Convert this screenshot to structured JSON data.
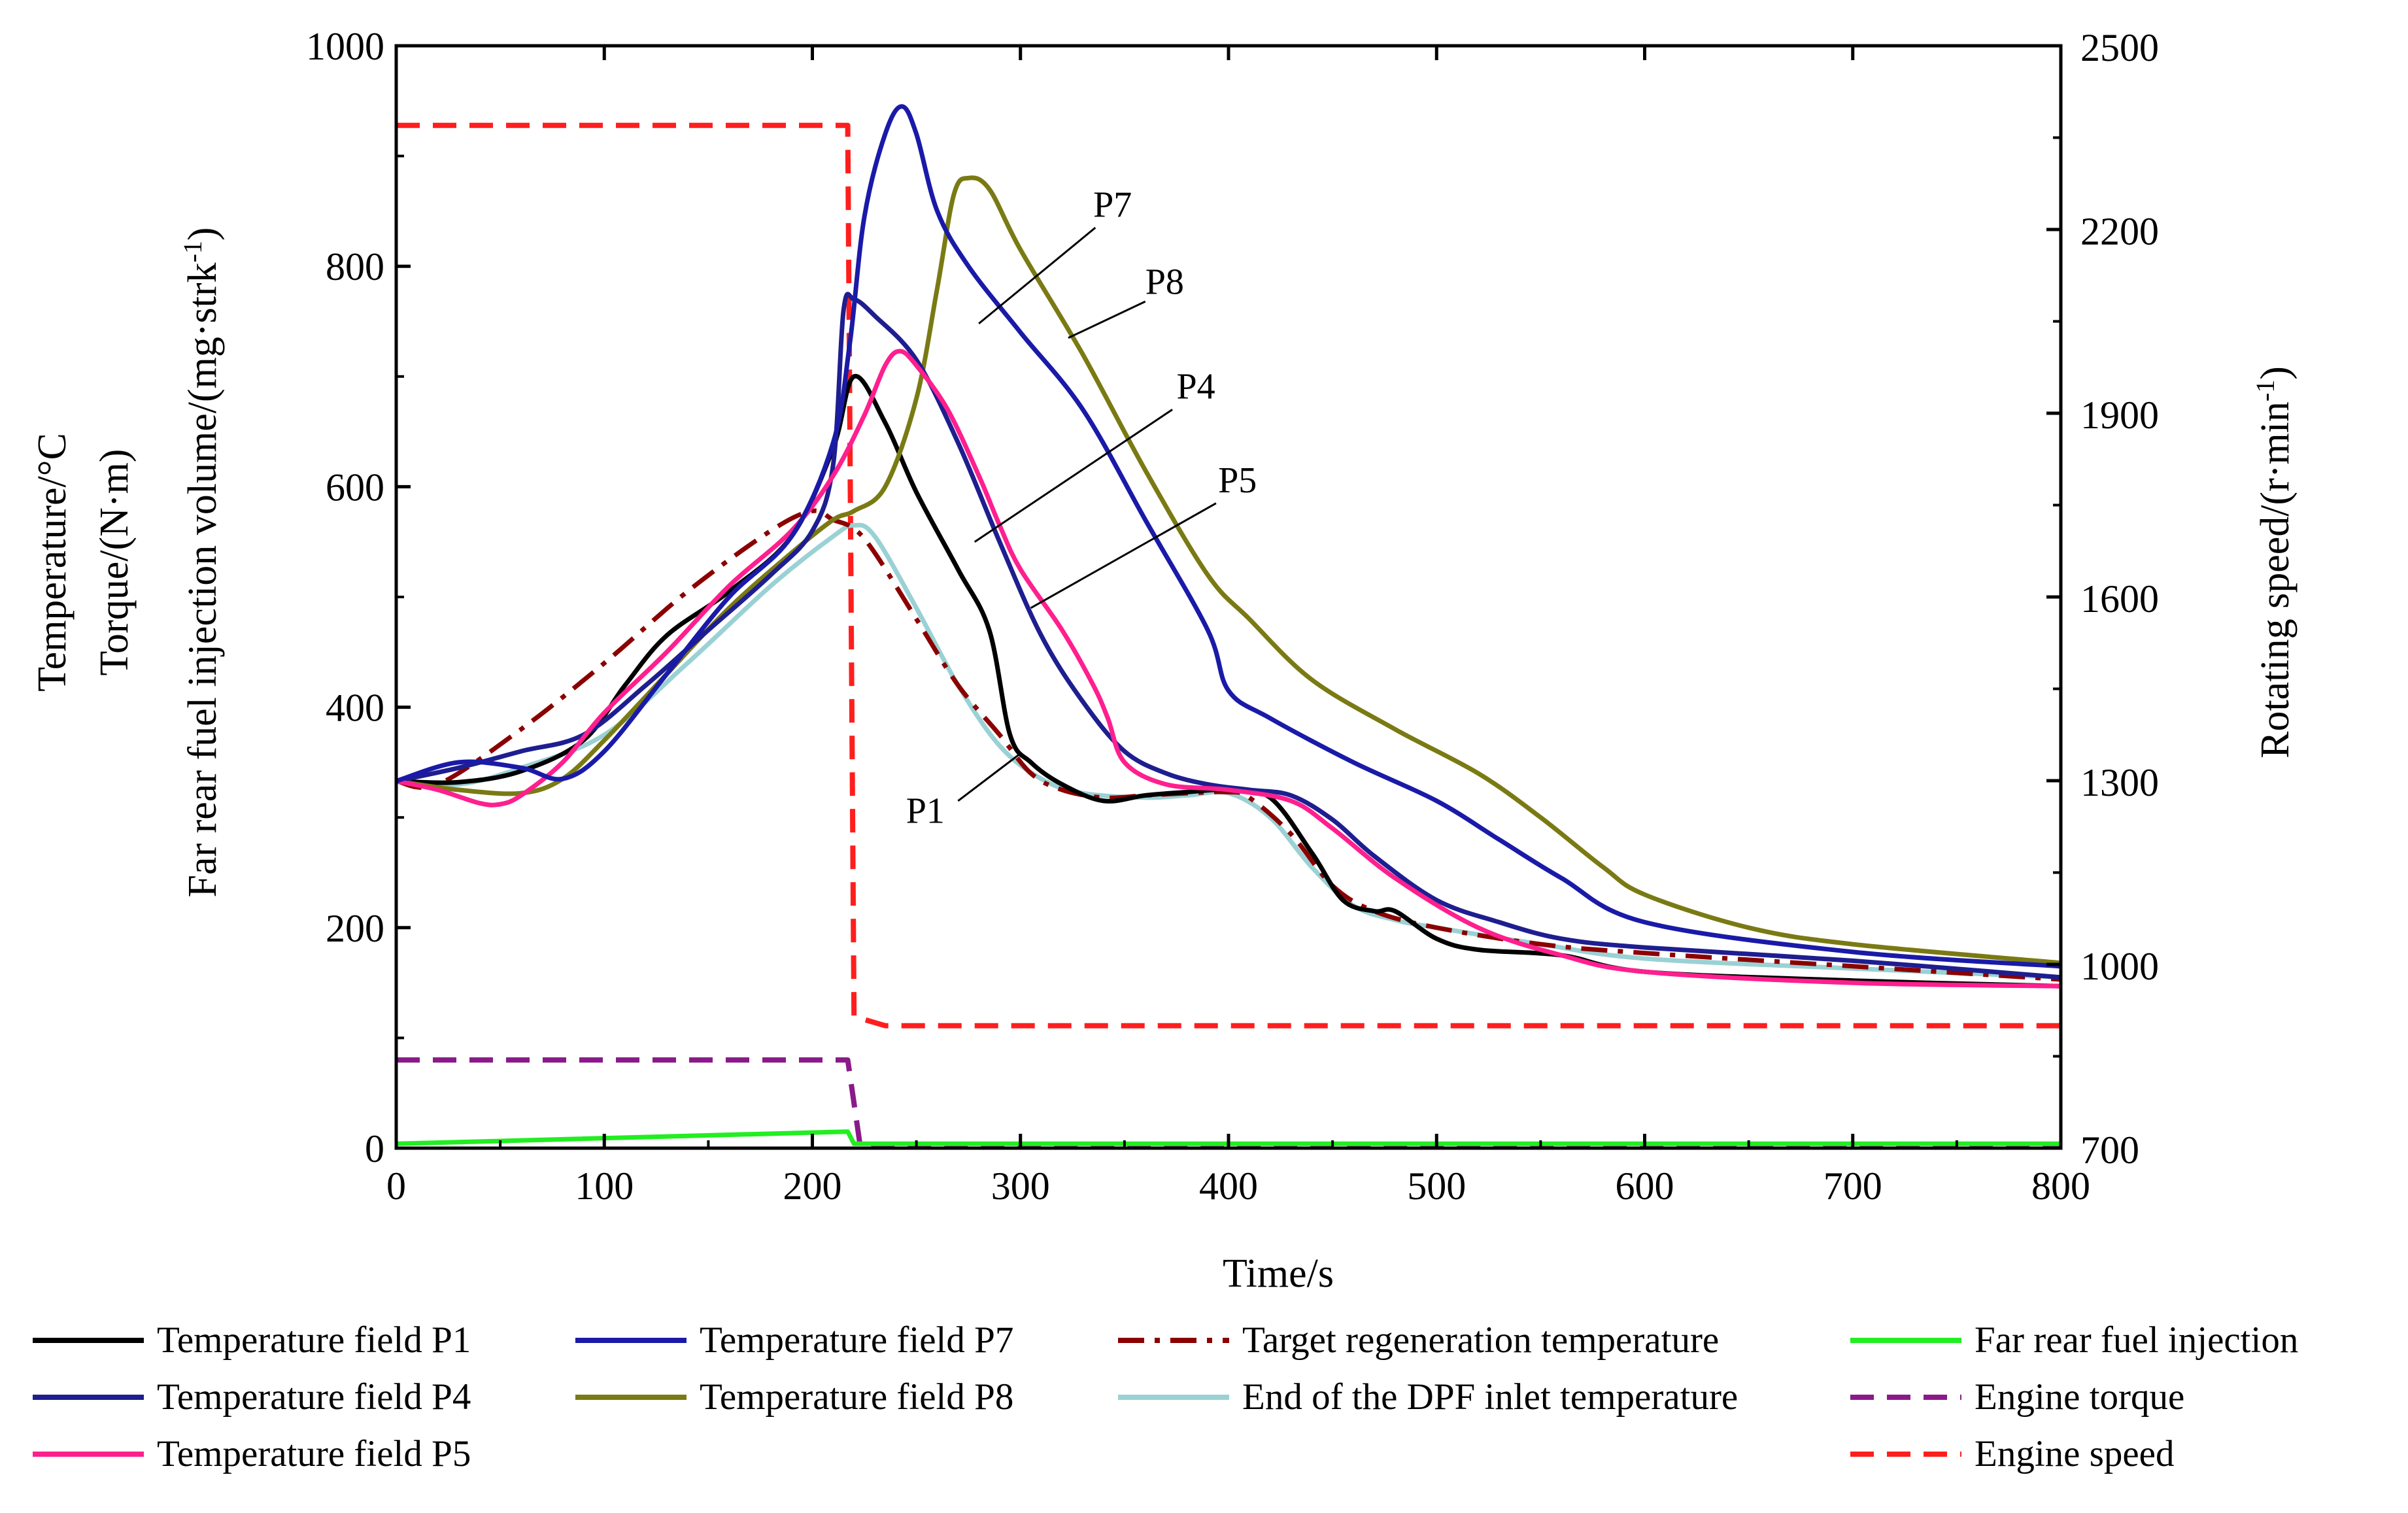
{
  "chart_data": {
    "type": "line",
    "xlabel": "Time/s",
    "ylabel_lines": [
      "Temperature/°C",
      "Torque/(N·m)",
      "Far rear fuel injection volume/(mg·strk"
    ],
    "ylabel_sup": "-1",
    "ylabel_close": ")",
    "y2label": "Rotating speed/(r·min",
    "y2label_sup": "-1",
    "y2label_close": ")",
    "xlim": [
      0,
      800
    ],
    "ylim": [
      0,
      1000
    ],
    "y2lim": [
      700,
      2500
    ],
    "x_ticks": [
      0,
      100,
      200,
      300,
      400,
      500,
      600,
      700,
      800
    ],
    "y_ticks": [
      0,
      200,
      400,
      600,
      800,
      1000
    ],
    "y2_ticks": [
      700,
      1000,
      1300,
      1600,
      1900,
      2200,
      2500
    ],
    "grid": false,
    "legend_position": "bottom",
    "series": [
      {
        "name": "Temperature field P1",
        "color": "#000000",
        "dash": "solid",
        "axis": "left",
        "x": [
          0,
          30,
          60,
          90,
          110,
          130,
          160,
          190,
          210,
          220,
          235,
          250,
          270,
          285,
          295,
          305,
          320,
          340,
          360,
          380,
          400,
          420,
          440,
          455,
          470,
          480,
          500,
          520,
          560,
          600,
          700,
          800
        ],
        "y": [
          333,
          332,
          342,
          370,
          420,
          465,
          505,
          555,
          635,
          700,
          658,
          595,
          525,
          470,
          375,
          350,
          330,
          315,
          320,
          323,
          325,
          318,
          268,
          225,
          215,
          215,
          190,
          180,
          175,
          160,
          152,
          147
        ]
      },
      {
        "name": "Temperature field P7",
        "color": "#1a1aa8",
        "dash": "solid",
        "axis": "left",
        "x": [
          0,
          30,
          60,
          80,
          100,
          130,
          160,
          190,
          210,
          218,
          225,
          235,
          243,
          250,
          260,
          275,
          300,
          330,
          360,
          390,
          400,
          420,
          460,
          500,
          530,
          560,
          600,
          700,
          800
        ],
        "y": [
          333,
          350,
          345,
          335,
          360,
          430,
          500,
          555,
          640,
          730,
          845,
          920,
          945,
          920,
          850,
          800,
          740,
          670,
          570,
          470,
          415,
          390,
          350,
          315,
          280,
          245,
          205,
          178,
          165
        ]
      },
      {
        "name": "Temperature field P4",
        "color": "#1e1e90",
        "dash": "solid",
        "axis": "left",
        "x": [
          0,
          30,
          60,
          90,
          120,
          150,
          180,
          200,
          210,
          215,
          220,
          230,
          250,
          270,
          290,
          310,
          330,
          350,
          370,
          390,
          410,
          430,
          450,
          470,
          500,
          530,
          560,
          600,
          700,
          800
        ],
        "y": [
          333,
          345,
          360,
          375,
          420,
          470,
          520,
          560,
          620,
          760,
          770,
          755,
          715,
          640,
          550,
          465,
          405,
          360,
          340,
          330,
          325,
          320,
          298,
          265,
          225,
          205,
          190,
          182,
          170,
          155
        ]
      },
      {
        "name": "Temperature field P8",
        "color": "#7a7a14",
        "dash": "solid",
        "axis": "left",
        "x": [
          0,
          30,
          60,
          80,
          100,
          130,
          160,
          190,
          210,
          220,
          235,
          250,
          260,
          268,
          275,
          285,
          300,
          330,
          360,
          390,
          410,
          440,
          480,
          520,
          550,
          580,
          600,
          650,
          700,
          800
        ],
        "y": [
          333,
          325,
          322,
          335,
          370,
          430,
          490,
          540,
          570,
          578,
          600,
          680,
          780,
          865,
          880,
          870,
          815,
          720,
          615,
          520,
          480,
          425,
          380,
          340,
          300,
          255,
          230,
          200,
          185,
          168
        ]
      },
      {
        "name": "Temperature field P5",
        "color": "#ff1f8e",
        "dash": "solid",
        "axis": "left",
        "x": [
          0,
          20,
          40,
          50,
          60,
          80,
          100,
          130,
          160,
          190,
          210,
          225,
          235,
          242,
          250,
          265,
          280,
          290,
          300,
          320,
          335,
          342,
          350,
          370,
          400,
          430,
          450,
          480,
          520,
          560,
          600,
          700,
          800
        ],
        "y": [
          333,
          325,
          313,
          312,
          320,
          350,
          395,
          450,
          510,
          560,
          610,
          665,
          710,
          723,
          710,
          670,
          610,
          565,
          525,
          470,
          420,
          390,
          350,
          330,
          325,
          315,
          290,
          245,
          200,
          175,
          160,
          150,
          147
        ]
      },
      {
        "name": "Target regeneration temperature",
        "color": "#8b0000",
        "dash": "dashdot",
        "axis": "left",
        "x": [
          0,
          20,
          60,
          100,
          140,
          180,
          200,
          210,
          220,
          230,
          250,
          270,
          290,
          305,
          320,
          340,
          360,
          380,
          400,
          410,
          430,
          450,
          470,
          500,
          550,
          600,
          700,
          800
        ],
        "y": [
          333,
          330,
          380,
          440,
          505,
          560,
          578,
          570,
          562,
          540,
          480,
          420,
          375,
          340,
          325,
          318,
          320,
          322,
          323,
          318,
          285,
          238,
          215,
          200,
          185,
          177,
          165,
          153
        ]
      },
      {
        "name": "End of the DPF inlet temperature",
        "color": "#9ad1d4",
        "dash": "solid",
        "axis": "left",
        "x": [
          0,
          30,
          60,
          100,
          140,
          180,
          210,
          220,
          230,
          250,
          270,
          290,
          310,
          330,
          360,
          380,
          400,
          420,
          440,
          460,
          480,
          500,
          550,
          600,
          700,
          800
        ],
        "y": [
          333,
          330,
          345,
          375,
          440,
          510,
          555,
          565,
          555,
          490,
          420,
          365,
          335,
          322,
          318,
          320,
          322,
          300,
          255,
          220,
          207,
          200,
          185,
          172,
          163,
          155
        ]
      },
      {
        "name": "Far rear fuel injection",
        "color": "#22ee22",
        "dash": "solid",
        "axis": "left",
        "x": [
          0,
          217,
          220,
          800
        ],
        "y": [
          4,
          15,
          4,
          4
        ]
      },
      {
        "name": "Engine torque",
        "color": "#8a1a8a",
        "dash": "dashed",
        "axis": "left",
        "x": [
          0,
          217,
          223,
          800
        ],
        "y": [
          80,
          80,
          2,
          2
        ]
      },
      {
        "name": "Engine speed",
        "color": "#ff1e1e",
        "dash": "dashed",
        "axis": "right",
        "x": [
          0,
          217,
          220,
          235,
          800
        ],
        "y": [
          2370,
          2370,
          915,
          900,
          900
        ]
      }
    ],
    "annotations": [
      {
        "text": "P7",
        "x": 335,
        "y": 845,
        "line_from": [
          336,
          835
        ],
        "line_to": [
          280,
          748
        ]
      },
      {
        "text": "P8",
        "x": 360,
        "y": 775,
        "line_from": [
          360,
          768
        ],
        "line_to": [
          323,
          735
        ]
      },
      {
        "text": "P4",
        "x": 375,
        "y": 680,
        "line_from": [
          373,
          670
        ],
        "line_to": [
          278,
          550
        ]
      },
      {
        "text": "P5",
        "x": 395,
        "y": 595,
        "line_from": [
          394,
          585
        ],
        "line_to": [
          305,
          490
        ]
      },
      {
        "text": "P1",
        "x": 245,
        "y": 295,
        "line_from": [
          270,
          315
        ],
        "line_to": [
          300,
          358
        ]
      }
    ],
    "legend": [
      [
        "Temperature field P1",
        "Temperature field P7",
        "Target regeneration temperature",
        "Far rear fuel injection"
      ],
      [
        "Temperature field P4",
        "Temperature field P8",
        "End of the DPF inlet temperature",
        "Engine torque"
      ],
      [
        "Temperature field P5",
        "",
        "",
        "Engine speed"
      ]
    ]
  }
}
